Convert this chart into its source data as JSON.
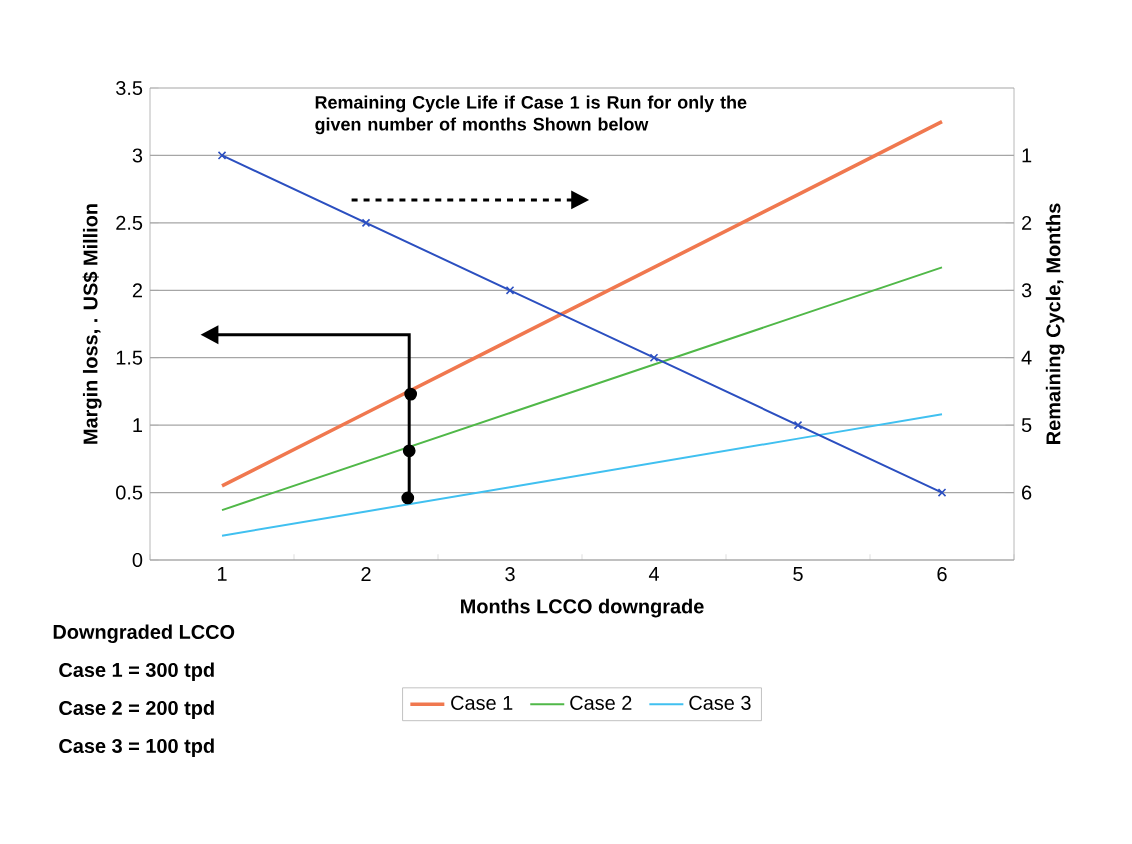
{
  "chart_data": {
    "type": "line",
    "xlabel": "Months LCCO downgrade",
    "ylabel": "Margin loss, . US$ Million",
    "y2label": "Remaining Cycle, Months",
    "x": [
      1,
      2,
      3,
      4,
      5,
      6
    ],
    "xlim": [
      0.5,
      6.5
    ],
    "xticks": [
      1,
      2,
      3,
      4,
      5,
      6
    ],
    "ylim": [
      0,
      3.5
    ],
    "yticks": [
      0,
      0.5,
      1,
      1.5,
      2,
      2.5,
      3,
      3.5
    ],
    "y2lim": [
      7,
      0
    ],
    "y2ticks": [
      1,
      2,
      3,
      4,
      5,
      6
    ],
    "grid": "y",
    "legend": "bottom",
    "line_style": "solid",
    "marker": "none",
    "series": [
      {
        "name": "Case 1",
        "color": "#f0784f",
        "values": [
          0.55,
          1.09,
          1.63,
          2.17,
          2.71,
          3.25
        ]
      },
      {
        "name": "Case 2",
        "color": "#50b848",
        "values": [
          0.37,
          0.73,
          1.09,
          1.45,
          1.81,
          2.17
        ]
      },
      {
        "name": "Case 3",
        "color": "#40c0f0",
        "values": [
          0.18,
          0.36,
          0.54,
          0.72,
          0.9,
          1.08
        ]
      },
      {
        "color": "#2b4fc0",
        "axis": "y2",
        "marker": "cross",
        "values": [
          1,
          2,
          3,
          4,
          5,
          6
        ]
      },
      {
        "type": "scatter",
        "color": "#000000",
        "marker": "circle",
        "x": [
          2.29,
          2.3,
          2.31
        ],
        "values": [
          0.46,
          0.81,
          1.23
        ]
      }
    ],
    "annotations": [
      "Remaining Cycle Life if Case 1 is Run for only  the given number of months Shown below",
      "Downgraded LCCO",
      "Case 1 = 300 tpd",
      "Case 2 = 200 tpd",
      "Case 3 = 100 tpd"
    ]
  }
}
